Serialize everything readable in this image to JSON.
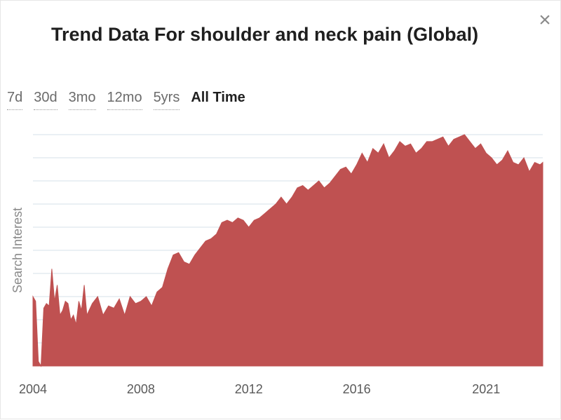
{
  "title": "Trend Data For shoulder and neck pain (Global)",
  "close_symbol": "×",
  "ranges": [
    {
      "label": "7d",
      "active": false
    },
    {
      "label": "30d",
      "active": false
    },
    {
      "label": "3mo",
      "active": false
    },
    {
      "label": "12mo",
      "active": false
    },
    {
      "label": "5yrs",
      "active": false
    },
    {
      "label": "All Time",
      "active": true
    }
  ],
  "colors": {
    "area": "#bf5151",
    "grid": "#d6e1ea",
    "ticks": "#5a5a5a"
  },
  "chart_data": {
    "type": "area",
    "title": "Trend Data For shoulder and neck pain (Global)",
    "xlabel": "",
    "ylabel": "Search Interest",
    "xlim": [
      2004.0,
      2022.9
    ],
    "ylim": [
      0,
      100
    ],
    "grid": true,
    "legend": "none",
    "x_ticks": [
      {
        "value": 2004,
        "label": "2004"
      },
      {
        "value": 2008,
        "label": "2008"
      },
      {
        "value": 2012,
        "label": "2012"
      },
      {
        "value": 2016,
        "label": "2016"
      },
      {
        "value": 2020.8,
        "label": "2021"
      }
    ],
    "series": [
      {
        "x": [
          2004.0,
          2004.1,
          2004.2,
          2004.3,
          2004.4,
          2004.5,
          2004.6,
          2004.7,
          2004.8,
          2004.9,
          2005.0,
          2005.1,
          2005.2,
          2005.3,
          2005.4,
          2005.5,
          2005.6,
          2005.7,
          2005.8,
          2005.9,
          2006.0,
          2006.2,
          2006.4,
          2006.6,
          2006.8,
          2007.0,
          2007.2,
          2007.4,
          2007.6,
          2007.8,
          2008.0,
          2008.2,
          2008.4,
          2008.6,
          2008.8,
          2009.0,
          2009.2,
          2009.4,
          2009.6,
          2009.8,
          2010.0,
          2010.2,
          2010.4,
          2010.6,
          2010.8,
          2011.0,
          2011.2,
          2011.4,
          2011.6,
          2011.8,
          2012.0,
          2012.2,
          2012.4,
          2012.6,
          2012.8,
          2013.0,
          2013.2,
          2013.4,
          2013.6,
          2013.8,
          2014.0,
          2014.2,
          2014.4,
          2014.6,
          2014.8,
          2015.0,
          2015.2,
          2015.4,
          2015.6,
          2015.8,
          2016.0,
          2016.2,
          2016.4,
          2016.6,
          2016.8,
          2017.0,
          2017.2,
          2017.4,
          2017.6,
          2017.8,
          2018.0,
          2018.2,
          2018.4,
          2018.6,
          2018.8,
          2019.0,
          2019.2,
          2019.4,
          2019.6,
          2019.8,
          2020.0,
          2020.2,
          2020.4,
          2020.6,
          2020.8,
          2021.0,
          2021.2,
          2021.4,
          2021.6,
          2021.8,
          2022.0,
          2022.2,
          2022.4,
          2022.6,
          2022.8,
          2022.9
        ],
        "y": [
          30,
          28,
          2,
          0,
          25,
          27,
          26,
          42,
          28,
          35,
          22,
          24,
          28,
          27,
          20,
          22,
          18,
          28,
          24,
          35,
          22,
          27,
          30,
          22,
          26,
          25,
          29,
          22,
          30,
          27,
          28,
          30,
          26,
          32,
          34,
          42,
          48,
          49,
          45,
          44,
          48,
          51,
          54,
          55,
          57,
          62,
          63,
          62,
          64,
          63,
          60,
          63,
          64,
          66,
          68,
          70,
          73,
          70,
          73,
          77,
          78,
          76,
          78,
          80,
          77,
          79,
          82,
          85,
          86,
          83,
          87,
          92,
          88,
          94,
          92,
          96,
          90,
          93,
          97,
          95,
          96,
          92,
          94,
          97,
          97,
          98,
          99,
          95,
          98,
          99,
          100,
          97,
          94,
          96,
          92,
          90,
          87,
          89,
          93,
          88,
          87,
          90,
          84,
          88,
          87,
          88
        ]
      }
    ]
  }
}
